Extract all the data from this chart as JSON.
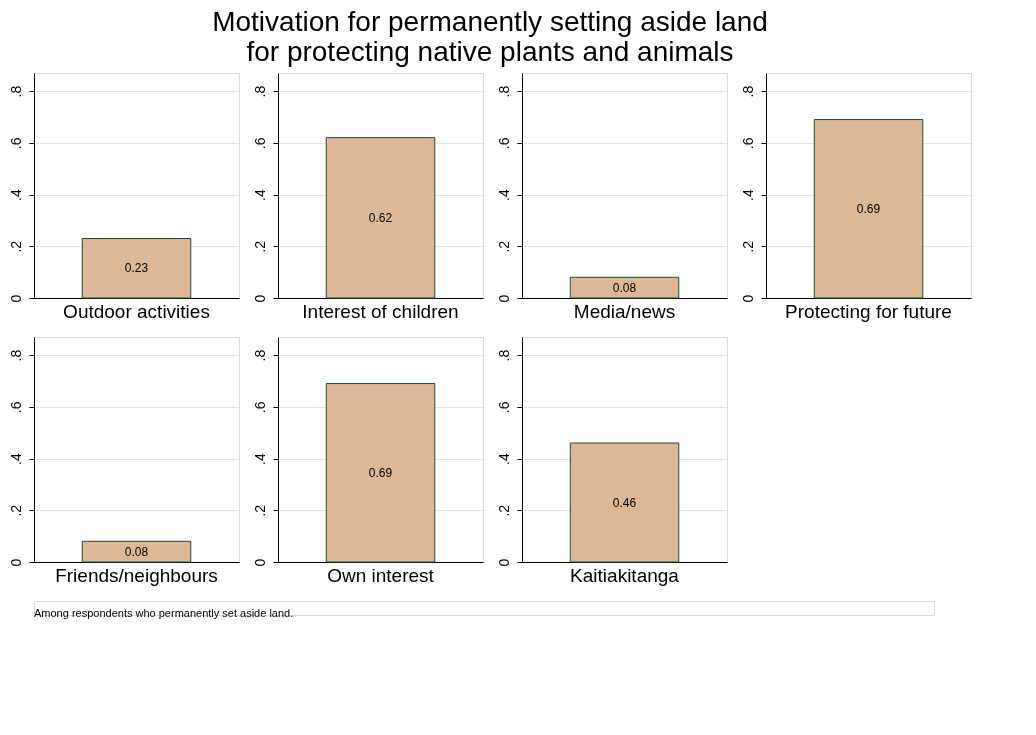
{
  "chart_data": [
    {
      "type": "bar",
      "title": [
        "Motivation for permanently setting aside land",
        "for protecting native plants and animals"
      ],
      "categories": [
        "Outdoor activities"
      ],
      "values": [
        0.23
      ],
      "color": "#dcb897",
      "ylim": [
        0,
        0.87
      ],
      "yticks": [
        0,
        {
          "value": 0.2,
          "label": ".2"
        },
        {
          "value": 0.4,
          "label": ".4"
        },
        {
          "value": 0.6,
          "label": ".6"
        },
        {
          "value": 0.8,
          "label": ".8"
        }
      ],
      "grid": "y",
      "data_labels": true
    },
    {
      "type": "bar",
      "categories": [
        "Interest of children"
      ],
      "values": [
        0.62
      ],
      "color": "#dcb897",
      "ylim": [
        0,
        0.87
      ],
      "yticks": [
        0,
        {
          "value": 0.2,
          "label": ".2"
        },
        {
          "value": 0.4,
          "label": ".4"
        },
        {
          "value": 0.6,
          "label": ".6"
        },
        {
          "value": 0.8,
          "label": ".8"
        }
      ],
      "grid": "y",
      "data_labels": true
    },
    {
      "type": "bar",
      "categories": [
        "Media/news"
      ],
      "values": [
        0.08
      ],
      "color": "#dcb897",
      "ylim": [
        0,
        0.87
      ],
      "yticks": [
        0,
        {
          "value": 0.2,
          "label": ".2"
        },
        {
          "value": 0.4,
          "label": ".4"
        },
        {
          "value": 0.6,
          "label": ".6"
        },
        {
          "value": 0.8,
          "label": ".8"
        }
      ],
      "grid": "y",
      "data_labels": true
    },
    {
      "type": "bar",
      "categories": [
        "Protecting for future"
      ],
      "values": [
        0.69
      ],
      "color": "#dcb897",
      "ylim": [
        0,
        0.87
      ],
      "yticks": [
        0,
        {
          "value": 0.2,
          "label": ".2"
        },
        {
          "value": 0.4,
          "label": ".4"
        },
        {
          "value": 0.6,
          "label": ".6"
        },
        {
          "value": 0.8,
          "label": ".8"
        }
      ],
      "grid": "y",
      "data_labels": true
    },
    {
      "type": "bar",
      "categories": [
        "Friends/neighbours"
      ],
      "values": [
        0.08
      ],
      "color": "#dcb897",
      "ylim": [
        0,
        0.87
      ],
      "yticks": [
        0,
        {
          "value": 0.2,
          "label": ".2"
        },
        {
          "value": 0.4,
          "label": ".4"
        },
        {
          "value": 0.6,
          "label": ".6"
        },
        {
          "value": 0.8,
          "label": ".8"
        }
      ],
      "grid": "y",
      "data_labels": true
    },
    {
      "type": "bar",
      "categories": [
        "Own interest"
      ],
      "values": [
        0.69
      ],
      "color": "#dcb897",
      "ylim": [
        0,
        0.87
      ],
      "yticks": [
        0,
        {
          "value": 0.2,
          "label": ".2"
        },
        {
          "value": 0.4,
          "label": ".4"
        },
        {
          "value": 0.6,
          "label": ".6"
        },
        {
          "value": 0.8,
          "label": ".8"
        }
      ],
      "grid": "y",
      "data_labels": true
    },
    {
      "type": "bar",
      "categories": [
        "Kaitiakitanga"
      ],
      "values": [
        0.46
      ],
      "color": "#dcb897",
      "ylim": [
        0,
        0.87
      ],
      "yticks": [
        0,
        {
          "value": 0.2,
          "label": ".2"
        },
        {
          "value": 0.4,
          "label": ".4"
        },
        {
          "value": 0.6,
          "label": ".6"
        },
        {
          "value": 0.8,
          "label": ".8"
        }
      ],
      "grid": "y",
      "data_labels": true,
      "annotations": [
        "Among respondents who permanently set aside land."
      ]
    }
  ]
}
